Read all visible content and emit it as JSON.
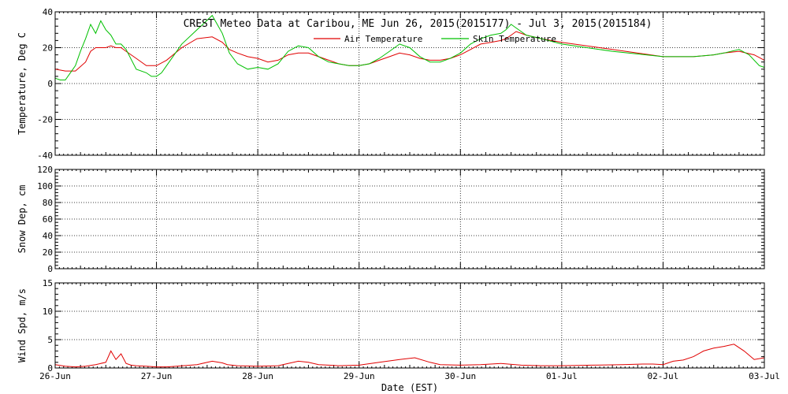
{
  "chart_data": [
    {
      "type": "line",
      "title": "CREST Meteo Data at Caribou, ME   Jun 26, 2015(2015177) - Jul  3, 2015(2015184)",
      "ylabel": "Temperature, Deg C",
      "ylim": [
        -40,
        40
      ],
      "yticks": [
        "40",
        "20",
        "0",
        "-20",
        "-40"
      ],
      "grid": true,
      "legend": "top-center",
      "series": [
        {
          "name": "Air Temperature",
          "color": "#e00000",
          "x": [
            0,
            0.1,
            0.2,
            0.3,
            0.35,
            0.4,
            0.45,
            0.5,
            0.55,
            0.6,
            0.65,
            0.7,
            0.8,
            0.9,
            0.95,
            1.0,
            1.1,
            1.25,
            1.4,
            1.55,
            1.65,
            1.72,
            1.8,
            1.9,
            2.0,
            2.1,
            2.2,
            2.3,
            2.4,
            2.5,
            2.6,
            2.7,
            2.8,
            2.9,
            3.0,
            3.1,
            3.2,
            3.3,
            3.4,
            3.5,
            3.6,
            3.7,
            3.8,
            3.9,
            4.0,
            4.1,
            4.2,
            4.3,
            4.4,
            4.45,
            4.5,
            4.55,
            4.65,
            4.8,
            5.0,
            5.5,
            6.0,
            6.3,
            6.5,
            6.6,
            6.75,
            6.9,
            7.0
          ],
          "y": [
            8,
            7,
            7,
            12,
            18,
            20,
            20,
            20,
            21,
            20,
            20,
            18,
            14,
            10,
            10,
            10,
            13,
            20,
            25,
            26,
            23,
            19,
            17,
            15,
            14,
            12,
            13,
            16,
            17,
            17,
            15,
            13,
            11,
            10,
            10,
            11,
            13,
            15,
            17,
            16,
            14,
            13,
            13,
            14,
            16,
            19,
            22,
            23,
            24,
            25,
            27,
            29,
            27,
            25,
            23,
            19,
            15,
            15,
            16,
            17,
            18,
            16,
            13
          ]
        },
        {
          "name": "Skin Temperature",
          "color": "#00c000",
          "x": [
            0,
            0.05,
            0.1,
            0.15,
            0.2,
            0.25,
            0.3,
            0.35,
            0.4,
            0.45,
            0.5,
            0.55,
            0.6,
            0.65,
            0.7,
            0.8,
            0.9,
            0.95,
            1.0,
            1.05,
            1.1,
            1.25,
            1.4,
            1.55,
            1.65,
            1.72,
            1.8,
            1.9,
            2.0,
            2.1,
            2.2,
            2.3,
            2.4,
            2.5,
            2.6,
            2.7,
            2.8,
            2.9,
            3.0,
            3.1,
            3.2,
            3.3,
            3.4,
            3.5,
            3.6,
            3.7,
            3.8,
            3.9,
            4.0,
            4.1,
            4.2,
            4.3,
            4.4,
            4.45,
            4.5,
            4.55,
            4.65,
            4.8,
            5.0,
            5.5,
            6.0,
            6.3,
            6.5,
            6.6,
            6.75,
            6.85,
            6.95,
            7.0
          ],
          "y": [
            3,
            2,
            2,
            6,
            10,
            18,
            25,
            33,
            28,
            35,
            30,
            27,
            22,
            22,
            19,
            8,
            6,
            4,
            4,
            6,
            10,
            22,
            30,
            38,
            28,
            17,
            11,
            8,
            9,
            8,
            11,
            18,
            21,
            20,
            15,
            12,
            11,
            10,
            10,
            11,
            14,
            18,
            22,
            20,
            15,
            12,
            12,
            14,
            17,
            22,
            25,
            27,
            28,
            30,
            33,
            31,
            27,
            25,
            22,
            18,
            15,
            15,
            16,
            17,
            19,
            16,
            10,
            9
          ]
        }
      ]
    },
    {
      "type": "line",
      "ylabel": "Snow Dep, cm",
      "ylim": [
        0,
        120
      ],
      "yticks": [
        "120",
        "100",
        "80",
        "60",
        "40",
        "20",
        "0"
      ],
      "grid": true,
      "series": []
    },
    {
      "type": "line",
      "xlabel": "Date (EST)",
      "ylabel": "Wind Spd, m/s",
      "ylim": [
        0,
        15
      ],
      "yticks": [
        "15",
        "10",
        "5",
        "0"
      ],
      "grid": true,
      "series": [
        {
          "color": "#e00000",
          "x": [
            0,
            0.1,
            0.2,
            0.3,
            0.4,
            0.5,
            0.55,
            0.6,
            0.65,
            0.7,
            0.75,
            0.8,
            0.9,
            1.0,
            1.1,
            1.2,
            1.4,
            1.55,
            1.65,
            1.7,
            1.8,
            2.0,
            2.2,
            2.3,
            2.4,
            2.5,
            2.6,
            2.7,
            2.8,
            3.0,
            3.2,
            3.4,
            3.55,
            3.7,
            3.8,
            4.0,
            4.2,
            4.4,
            4.6,
            4.8,
            5.0,
            5.3,
            5.6,
            5.8,
            5.9,
            6.0,
            6.1,
            6.2,
            6.3,
            6.4,
            6.5,
            6.6,
            6.7,
            6.8,
            6.9,
            7.0
          ],
          "y": [
            0.6,
            0.3,
            0.2,
            0.3,
            0.6,
            1.0,
            3.0,
            1.5,
            2.5,
            0.8,
            0.5,
            0.4,
            0.3,
            0.2,
            0.2,
            0.3,
            0.6,
            1.2,
            0.9,
            0.6,
            0.4,
            0.3,
            0.4,
            0.8,
            1.2,
            1.0,
            0.6,
            0.5,
            0.4,
            0.5,
            1.0,
            1.5,
            1.8,
            1.0,
            0.6,
            0.5,
            0.6,
            0.8,
            0.5,
            0.4,
            0.4,
            0.5,
            0.6,
            0.7,
            0.7,
            0.6,
            1.2,
            1.4,
            2.0,
            3.0,
            3.5,
            3.8,
            4.2,
            3.0,
            1.5,
            1.8
          ]
        }
      ]
    }
  ],
  "x_axis": {
    "range_days": [
      0,
      7
    ],
    "tick_labels": [
      "26-Jun",
      "27-Jun",
      "28-Jun",
      "29-Jun",
      "30-Jun",
      "01-Jul",
      "02-Jul",
      "03-Jul"
    ]
  }
}
